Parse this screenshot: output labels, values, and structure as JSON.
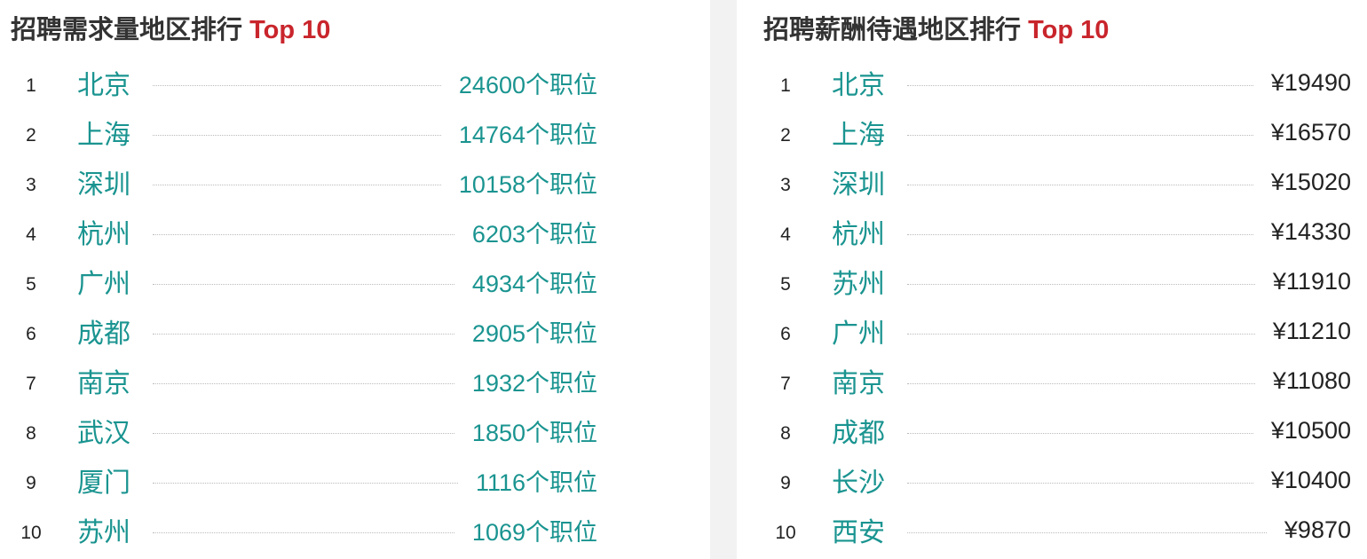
{
  "demand": {
    "title": "招聘需求量地区排行",
    "title_highlight": "Top 10",
    "items": [
      {
        "rank": "1",
        "city": "北京",
        "value": "24600个职位"
      },
      {
        "rank": "2",
        "city": "上海",
        "value": "14764个职位"
      },
      {
        "rank": "3",
        "city": "深圳",
        "value": "10158个职位"
      },
      {
        "rank": "4",
        "city": "杭州",
        "value": "6203个职位"
      },
      {
        "rank": "5",
        "city": "广州",
        "value": "4934个职位"
      },
      {
        "rank": "6",
        "city": "成都",
        "value": "2905个职位"
      },
      {
        "rank": "7",
        "city": "南京",
        "value": "1932个职位"
      },
      {
        "rank": "8",
        "city": "武汉",
        "value": "1850个职位"
      },
      {
        "rank": "9",
        "city": "厦门",
        "value": "1116个职位"
      },
      {
        "rank": "10",
        "city": "苏州",
        "value": "1069个职位"
      }
    ]
  },
  "salary": {
    "title": "招聘薪酬待遇地区排行",
    "title_highlight": "Top 10",
    "items": [
      {
        "rank": "1",
        "city": "北京",
        "value": "¥19490"
      },
      {
        "rank": "2",
        "city": "上海",
        "value": "¥16570"
      },
      {
        "rank": "3",
        "city": "深圳",
        "value": "¥15020"
      },
      {
        "rank": "4",
        "city": "杭州",
        "value": "¥14330"
      },
      {
        "rank": "5",
        "city": "苏州",
        "value": "¥11910"
      },
      {
        "rank": "6",
        "city": "广州",
        "value": "¥11210"
      },
      {
        "rank": "7",
        "city": "南京",
        "value": "¥11080"
      },
      {
        "rank": "8",
        "city": "成都",
        "value": "¥10500"
      },
      {
        "rank": "9",
        "city": "长沙",
        "value": "¥10400"
      },
      {
        "rank": "10",
        "city": "西安",
        "value": "¥9870"
      }
    ]
  },
  "colors": {
    "accent": "#1a9490",
    "highlight": "#c9252c",
    "text": "#333333"
  }
}
